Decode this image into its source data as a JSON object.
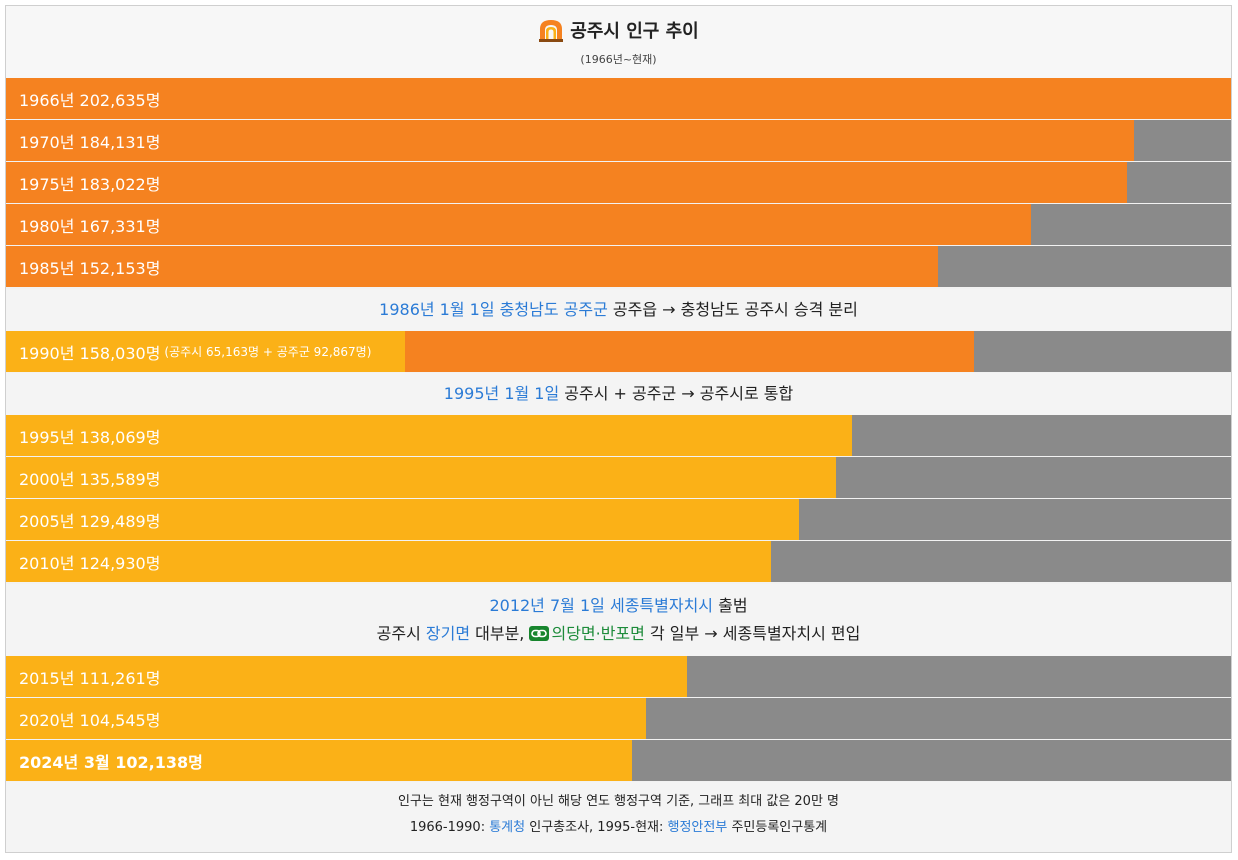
{
  "chart_data": {
    "type": "bar",
    "orientation": "horizontal",
    "title": "공주시 인구 추이",
    "subtitle": "(1966년~현재)",
    "xlim": [
      0,
      200000
    ],
    "categories": [
      "1966년",
      "1970년",
      "1975년",
      "1980년",
      "1985년",
      "1990년",
      "1995년",
      "2000년",
      "2005년",
      "2010년",
      "2015년",
      "2020년",
      "2024년 3월"
    ],
    "values": [
      202635,
      184131,
      183022,
      167331,
      152153,
      158030,
      138069,
      135589,
      129489,
      124930,
      111261,
      104545,
      102138
    ],
    "bars": [
      {
        "label": "1966년 202,635명",
        "value": 202635,
        "color": "#f58220"
      },
      {
        "label": "1970년 184,131명",
        "value": 184131,
        "color": "#f58220"
      },
      {
        "label": "1975년 183,022명",
        "value": 183022,
        "color": "#f58220"
      },
      {
        "label": "1980년 167,331명",
        "value": 167331,
        "color": "#f58220"
      },
      {
        "label": "1985년 152,153명",
        "value": 152153,
        "color": "#f58220"
      },
      {
        "label": "1990년 158,030명",
        "value": 158030,
        "color": "#f58220",
        "detail": "(공주시 65,163명 + 공주군 92,867명)",
        "segments": [
          {
            "name": "공주시",
            "value": 65163,
            "color": "#fbb117"
          },
          {
            "name": "공주군",
            "value": 92867,
            "color": "#f58220"
          }
        ]
      },
      {
        "label": "1995년 138,069명",
        "value": 138069,
        "color": "#fbb117"
      },
      {
        "label": "2000년 135,589명",
        "value": 135589,
        "color": "#fbb117"
      },
      {
        "label": "2005년 129,489명",
        "value": 129489,
        "color": "#fbb117"
      },
      {
        "label": "2010년 124,930명",
        "value": 124930,
        "color": "#fbb117"
      },
      {
        "label": "2015년 111,261명",
        "value": 111261,
        "color": "#fbb117"
      },
      {
        "label": "2020년 104,545명",
        "value": 104545,
        "color": "#fbb117"
      },
      {
        "label": "2024년 3월 102,138명",
        "value": 102138,
        "color": "#fbb117",
        "bold": true
      }
    ],
    "background_color": "#8a8a8a"
  },
  "notes": {
    "n1986": {
      "date": "1986년 1월 1일",
      "place": "충청남도 공주군",
      "text": " 공주읍 → 충청남도 공주시 승격 분리"
    },
    "n1995": {
      "date": "1995년 1월 1일",
      "text": " 공주시 + 공주군 → 공주시로 통합"
    },
    "n2012": {
      "date": "2012년 7월 1일",
      "place": "세종특별자치시",
      "text": " 출범",
      "line2_a": "공주시 ",
      "line2_b": "장기면",
      "line2_c": " 대부분, ",
      "line2_d": "의당면·반포면",
      "line2_e": " 각 일부 → 세종특별자치시 편입"
    }
  },
  "footer": {
    "line1": "인구는 현재 행정구역이 아닌 해당 연도 행정구역 기준, 그래프 최대 값은 20만 명",
    "line2_a": "1966-1990: ",
    "line2_b": "통계청",
    "line2_c": " 인구총조사, 1995-현재: ",
    "line2_d": "행정안전부",
    "line2_e": " 주민등록인구통계"
  },
  "colors": {
    "orange": "#f58220",
    "yellow": "#fbb117",
    "gray": "#8a8a8a",
    "link": "#2b7bd6"
  },
  "icons": {
    "title_icon": "arch-gate-icon",
    "link_icon": "chain-link-icon"
  }
}
